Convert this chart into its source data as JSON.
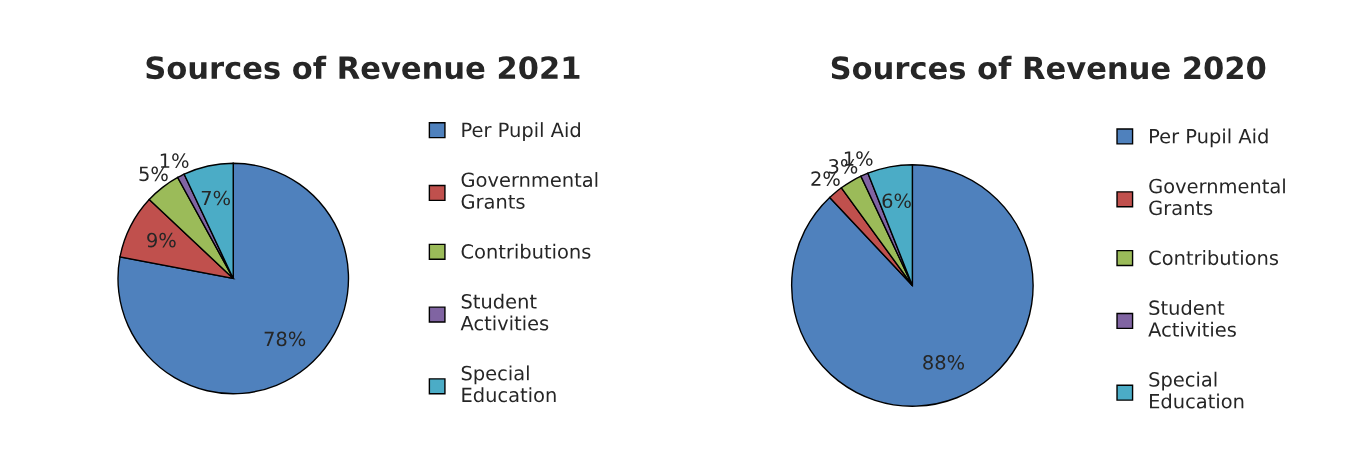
{
  "chart_data": [
    {
      "type": "pie",
      "title": "Sources of Revenue 2021",
      "categories": [
        "Per Pupil Aid",
        "Governmental Grants",
        "Contributions",
        "Student Activities",
        "Special Education"
      ],
      "values": [
        78,
        9,
        5,
        1,
        7
      ],
      "value_labels": [
        "78%",
        "9%",
        "5%",
        "1%",
        "7%"
      ],
      "colors": [
        "#4f81bd",
        "#c0504d",
        "#9bbb59",
        "#8064a2",
        "#4bacc6"
      ],
      "legend": "right"
    },
    {
      "type": "pie",
      "title": "Sources of Revenue 2020",
      "categories": [
        "Per Pupil Aid",
        "Governmental Grants",
        "Contributions",
        "Student Activities",
        "Special Education"
      ],
      "values": [
        88,
        2,
        3,
        1,
        6
      ],
      "value_labels": [
        "88%",
        "2%",
        "3%",
        "1%",
        "6%"
      ],
      "colors": [
        "#4f81bd",
        "#c0504d",
        "#9bbb59",
        "#8064a2",
        "#4bacc6"
      ],
      "legend": "right"
    }
  ]
}
